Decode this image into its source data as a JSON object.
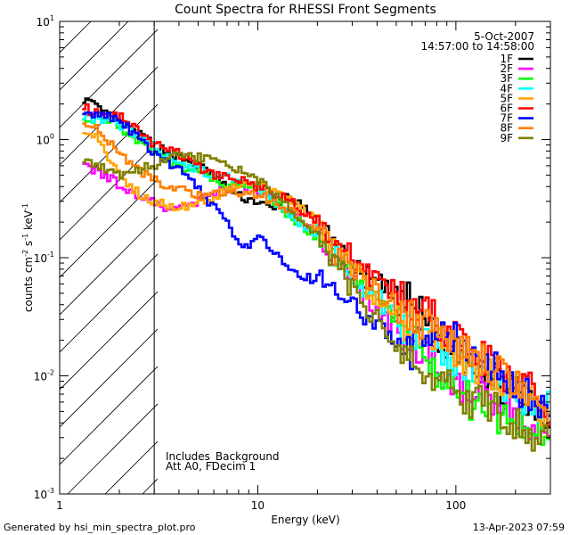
{
  "chart_data": {
    "type": "line",
    "title": "Count Spectra for RHESSI Front Segments",
    "date": "5-Oct-2007",
    "time_range": "14:57:00 to 14:58:00",
    "xlabel": "Energy (keV)",
    "ylabel_parts": [
      "counts cm",
      "-2",
      " s",
      "-1",
      " keV",
      "-1"
    ],
    "xscale": "log",
    "yscale": "log",
    "xlim": [
      1,
      300
    ],
    "ylim": [
      0.001,
      10
    ],
    "x_ticks": [
      {
        "value": 1,
        "label": "1"
      },
      {
        "value": 10,
        "label": "10"
      },
      {
        "value": 100,
        "label": "100"
      }
    ],
    "y_ticks": [
      {
        "value": 0.001,
        "base": "10",
        "exp": "-3"
      },
      {
        "value": 0.01,
        "base": "10",
        "exp": "-2"
      },
      {
        "value": 0.1,
        "base": "10",
        "exp": "-1"
      },
      {
        "value": 1,
        "base": "10",
        "exp": "0"
      },
      {
        "value": 10,
        "base": "10",
        "exp": "1"
      }
    ],
    "excluded_region": {
      "from": 1,
      "to": 3
    },
    "annotations": [
      "Includes_Background",
      "Att A0, FDecim 1"
    ],
    "legend_placement": "top-right",
    "series": [
      {
        "name": "1F",
        "color": "#000000",
        "points": [
          [
            1.3,
            2.3
          ],
          [
            1.5,
            1.9
          ],
          [
            2,
            1.4
          ],
          [
            3,
            0.9
          ],
          [
            4,
            0.7
          ],
          [
            5,
            0.6
          ],
          [
            6,
            0.5
          ],
          [
            7,
            0.38
          ],
          [
            8,
            0.33
          ],
          [
            10,
            0.3
          ],
          [
            12,
            0.25
          ],
          [
            14,
            0.35
          ],
          [
            17,
            0.26
          ],
          [
            20,
            0.2
          ],
          [
            25,
            0.12
          ],
          [
            30,
            0.08
          ],
          [
            40,
            0.06
          ],
          [
            50,
            0.045
          ],
          [
            60,
            0.042
          ],
          [
            70,
            0.03
          ],
          [
            80,
            0.022
          ],
          [
            100,
            0.017
          ],
          [
            130,
            0.012
          ],
          [
            160,
            0.009
          ],
          [
            200,
            0.007
          ],
          [
            250,
            0.005
          ],
          [
            300,
            0.004
          ]
        ]
      },
      {
        "name": "2F",
        "color": "#ff00ff",
        "points": [
          [
            1.3,
            0.7
          ],
          [
            1.5,
            0.55
          ],
          [
            2,
            0.42
          ],
          [
            2.5,
            0.34
          ],
          [
            3,
            0.3
          ],
          [
            3.5,
            0.24
          ],
          [
            4,
            0.26
          ],
          [
            5,
            0.3
          ],
          [
            6,
            0.35
          ],
          [
            8,
            0.42
          ],
          [
            10,
            0.38
          ],
          [
            12,
            0.32
          ],
          [
            15,
            0.24
          ],
          [
            20,
            0.15
          ],
          [
            25,
            0.09
          ],
          [
            30,
            0.06
          ],
          [
            40,
            0.035
          ],
          [
            50,
            0.024
          ],
          [
            60,
            0.018
          ],
          [
            80,
            0.012
          ],
          [
            100,
            0.009
          ],
          [
            130,
            0.007
          ],
          [
            160,
            0.006
          ],
          [
            200,
            0.005
          ],
          [
            250,
            0.0035
          ],
          [
            300,
            0.0022
          ]
        ]
      },
      {
        "name": "3F",
        "color": "#00ff00",
        "points": [
          [
            1.3,
            1.6
          ],
          [
            1.5,
            1.5
          ],
          [
            2,
            1.3
          ],
          [
            3,
            0.8
          ],
          [
            4,
            0.6
          ],
          [
            5,
            0.5
          ],
          [
            6,
            0.45
          ],
          [
            8,
            0.4
          ],
          [
            10,
            0.38
          ],
          [
            12,
            0.3
          ],
          [
            15,
            0.22
          ],
          [
            20,
            0.15
          ],
          [
            25,
            0.1
          ],
          [
            30,
            0.07
          ],
          [
            40,
            0.04
          ],
          [
            50,
            0.028
          ],
          [
            60,
            0.02
          ],
          [
            70,
            0.015
          ],
          [
            80,
            0.011
          ],
          [
            100,
            0.008
          ],
          [
            120,
            0.006
          ],
          [
            150,
            0.005
          ],
          [
            200,
            0.004
          ],
          [
            250,
            0.0035
          ],
          [
            300,
            0.003
          ]
        ]
      },
      {
        "name": "4F",
        "color": "#00ffff",
        "points": [
          [
            1.3,
            1.6
          ],
          [
            1.5,
            1.5
          ],
          [
            2,
            1.35
          ],
          [
            3,
            0.85
          ],
          [
            4,
            0.65
          ],
          [
            5,
            0.55
          ],
          [
            6,
            0.5
          ],
          [
            8,
            0.45
          ],
          [
            10,
            0.38
          ],
          [
            12,
            0.3
          ],
          [
            15,
            0.22
          ],
          [
            20,
            0.16
          ],
          [
            25,
            0.11
          ],
          [
            30,
            0.075
          ],
          [
            40,
            0.045
          ],
          [
            50,
            0.03
          ],
          [
            60,
            0.022
          ],
          [
            80,
            0.016
          ],
          [
            100,
            0.012
          ],
          [
            130,
            0.009
          ],
          [
            160,
            0.008
          ],
          [
            200,
            0.007
          ],
          [
            250,
            0.006
          ],
          [
            300,
            0.005
          ]
        ]
      },
      {
        "name": "5F",
        "color": "#ffa500",
        "points": [
          [
            1.3,
            1.2
          ],
          [
            1.5,
            1.1
          ],
          [
            2,
            0.5
          ],
          [
            2.5,
            0.35
          ],
          [
            3,
            0.3
          ],
          [
            4,
            0.27
          ],
          [
            5,
            0.28
          ],
          [
            6,
            0.33
          ],
          [
            8,
            0.4
          ],
          [
            10,
            0.42
          ],
          [
            12,
            0.36
          ],
          [
            15,
            0.3
          ],
          [
            20,
            0.2
          ],
          [
            25,
            0.12
          ],
          [
            30,
            0.08
          ],
          [
            40,
            0.045
          ],
          [
            50,
            0.032
          ],
          [
            60,
            0.026
          ],
          [
            80,
            0.02
          ],
          [
            100,
            0.016
          ],
          [
            130,
            0.012
          ],
          [
            160,
            0.01
          ],
          [
            200,
            0.008
          ],
          [
            250,
            0.006
          ],
          [
            300,
            0.0045
          ]
        ]
      },
      {
        "name": "6F",
        "color": "#ff0000",
        "points": [
          [
            1.3,
            1.9
          ],
          [
            1.5,
            1.7
          ],
          [
            2,
            1.6
          ],
          [
            3,
            0.9
          ],
          [
            4,
            0.75
          ],
          [
            5,
            0.6
          ],
          [
            6,
            0.5
          ],
          [
            8,
            0.45
          ],
          [
            10,
            0.4
          ],
          [
            12,
            0.35
          ],
          [
            15,
            0.3
          ],
          [
            20,
            0.2
          ],
          [
            25,
            0.14
          ],
          [
            30,
            0.1
          ],
          [
            40,
            0.065
          ],
          [
            50,
            0.05
          ],
          [
            60,
            0.04
          ],
          [
            80,
            0.03
          ],
          [
            100,
            0.02
          ],
          [
            130,
            0.015
          ],
          [
            160,
            0.012
          ],
          [
            200,
            0.009
          ],
          [
            250,
            0.007
          ],
          [
            300,
            0.005
          ]
        ]
      },
      {
        "name": "7F",
        "color": "#0000ff",
        "points": [
          [
            1.3,
            1.7
          ],
          [
            1.5,
            1.6
          ],
          [
            2,
            1.5
          ],
          [
            3,
            0.75
          ],
          [
            4,
            0.55
          ],
          [
            5,
            0.38
          ],
          [
            6,
            0.27
          ],
          [
            7,
            0.2
          ],
          [
            8,
            0.14
          ],
          [
            9,
            0.12
          ],
          [
            10,
            0.15
          ],
          [
            12,
            0.11
          ],
          [
            14,
            0.09
          ],
          [
            17,
            0.07
          ],
          [
            20,
            0.065
          ],
          [
            25,
            0.055
          ],
          [
            30,
            0.045
          ],
          [
            40,
            0.025
          ],
          [
            50,
            0.018
          ],
          [
            60,
            0.016
          ],
          [
            70,
            0.022
          ],
          [
            80,
            0.028
          ],
          [
            100,
            0.022
          ],
          [
            130,
            0.015
          ],
          [
            160,
            0.011
          ],
          [
            200,
            0.008
          ],
          [
            250,
            0.006
          ],
          [
            300,
            0.004
          ]
        ]
      },
      {
        "name": "8F",
        "color": "#ff7f00",
        "points": [
          [
            1.3,
            1.4
          ],
          [
            1.5,
            1.3
          ],
          [
            2,
            0.75
          ],
          [
            2.5,
            0.55
          ],
          [
            3,
            0.45
          ],
          [
            4,
            0.38
          ],
          [
            5,
            0.33
          ],
          [
            6,
            0.36
          ],
          [
            8,
            0.36
          ],
          [
            10,
            0.34
          ],
          [
            12,
            0.3
          ],
          [
            15,
            0.25
          ],
          [
            20,
            0.17
          ],
          [
            25,
            0.11
          ],
          [
            30,
            0.08
          ],
          [
            40,
            0.05
          ],
          [
            50,
            0.038
          ],
          [
            60,
            0.03
          ],
          [
            80,
            0.024
          ],
          [
            100,
            0.018
          ],
          [
            130,
            0.014
          ],
          [
            160,
            0.011
          ],
          [
            200,
            0.009
          ],
          [
            250,
            0.007
          ],
          [
            300,
            0.005
          ]
        ]
      },
      {
        "name": "9F",
        "color": "#808000",
        "points": [
          [
            1.3,
            0.65
          ],
          [
            1.5,
            0.6
          ],
          [
            2,
            0.5
          ],
          [
            3,
            0.6
          ],
          [
            4,
            0.75
          ],
          [
            5,
            0.7
          ],
          [
            6,
            0.72
          ],
          [
            7,
            0.6
          ],
          [
            8,
            0.55
          ],
          [
            10,
            0.45
          ],
          [
            12,
            0.35
          ],
          [
            15,
            0.25
          ],
          [
            20,
            0.16
          ],
          [
            25,
            0.09
          ],
          [
            30,
            0.055
          ],
          [
            40,
            0.03
          ],
          [
            50,
            0.018
          ],
          [
            60,
            0.013
          ],
          [
            80,
            0.009
          ],
          [
            100,
            0.007
          ],
          [
            130,
            0.006
          ],
          [
            160,
            0.005
          ],
          [
            200,
            0.004
          ],
          [
            250,
            0.003
          ],
          [
            300,
            0.0025
          ]
        ]
      }
    ]
  },
  "footer": {
    "generated_by": "Generated by hsi_min_spectra_plot.pro",
    "timestamp": "13-Apr-2023 07:59"
  }
}
